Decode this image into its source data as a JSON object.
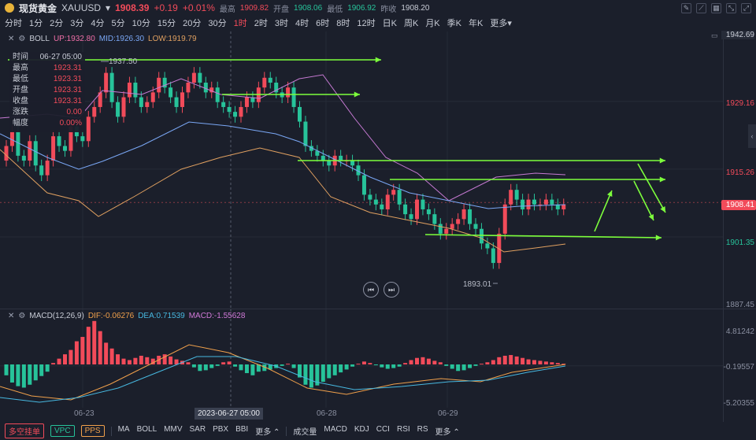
{
  "header": {
    "title": "现货黄金",
    "symbol": "XAUUSD",
    "price": "1908.39",
    "change": "+0.19",
    "change_pct": "+0.01%",
    "high_label": "最高",
    "high": "1909.82",
    "open_label": "开盘",
    "open": "1908.06",
    "low_label": "最低",
    "low": "1906.92",
    "prev_close_label": "昨收",
    "prev_close": "1908.20"
  },
  "periods": [
    "分时",
    "1分",
    "2分",
    "3分",
    "4分",
    "5分",
    "10分",
    "15分",
    "20分",
    "30分",
    "1时",
    "2时",
    "3时",
    "4时",
    "6时",
    "8时",
    "12时",
    "日K",
    "周K",
    "月K",
    "季K",
    "年K",
    "更多"
  ],
  "active_period": "1时",
  "boll": {
    "name": "BOLL",
    "up": "UP:1932.80",
    "mid": "MID:1926.30",
    "low": "LOW:1919.79"
  },
  "price_axis": {
    "top": "1942.69",
    "p1": "1929.16",
    "p2": "1915.26",
    "current": "1908.41",
    "p3": "1901.35",
    "p4": "1887.45"
  },
  "chart_labels": {
    "high_mark": "1937.50",
    "low_mark": "1893.01"
  },
  "info": {
    "time_label": "时间",
    "time": "06-27 05:00",
    "high_label": "最高",
    "high": "1923.31",
    "low_label": "最低",
    "low": "1923.31",
    "open_label": "开盘",
    "open": "1923.31",
    "close_label": "收盘",
    "close": "1923.31",
    "chg_label": "涨跌",
    "chg": "0.00",
    "amp_label": "幅度",
    "amp": "0.00%"
  },
  "macd": {
    "name": "MACD(12,26,9)",
    "dif": "DIF:-0.06276",
    "dea": "DEA:0.71539",
    "macd": "MACD:-1.55628",
    "axis_top": "4.81242",
    "axis_mid": "-0.19557",
    "axis_bot": "-5.20355"
  },
  "x_axis": {
    "d1": "06-23",
    "d2": "06-28",
    "d3": "06-29",
    "crosshair": "2023-06-27 05:00"
  },
  "bottom": {
    "btn1": "多空挂单",
    "btn2": "VPC",
    "btn3": "PPS",
    "indicators_main": [
      "MA",
      "BOLL",
      "MMV",
      "SAR",
      "PBX",
      "BBI",
      "更多"
    ],
    "indicators_sub": [
      "成交量",
      "MACD",
      "KDJ",
      "CCI",
      "RSI",
      "RS",
      "更多"
    ]
  },
  "colors": {
    "bg": "#1b1f2b",
    "up": "#f24b5a",
    "down": "#27c39a",
    "annotation": "#7dff3c"
  }
}
